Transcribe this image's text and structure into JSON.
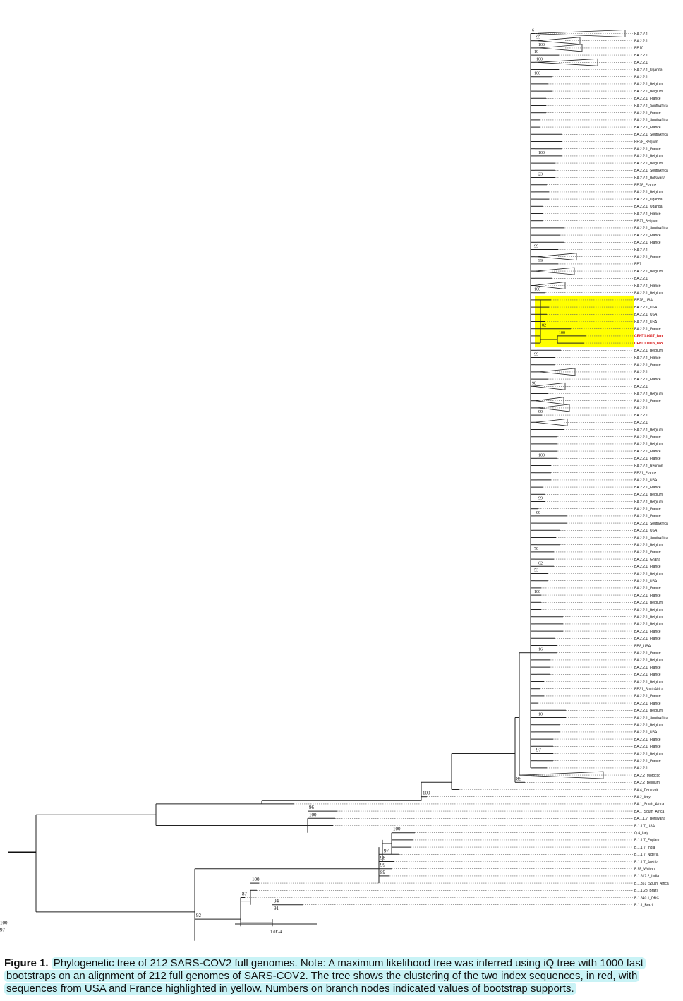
{
  "figure": {
    "caption_lead": "Figure 1.",
    "caption_text": "Phylogenetic tree of 212 SARS-COV2 full genomes. Note: A maximum likelihood tree was inferred using iQ tree with 1000 fast bootstraps on an alignment of 212 full genomes of SARS-COV2. The tree shows the clustering of the two index sequences, in red, with sequences from USA and France highlighted in yellow. Numbers on branch nodes indicated values of bootstrap supports."
  },
  "tree": {
    "scale_label": "1.0E-4",
    "highlight_color": "#ffff00",
    "index_color": "#d40000",
    "tips": [
      "BA.2.2.1",
      "BA.2.2.1",
      "BF.10",
      "BA.2.2.1",
      "BA.2.2.1",
      "BA.2.2.1_Uganda",
      "BA.2.2.1",
      "BA.2.2.1_Belgium",
      "BA.2.2.1_Belgium",
      "BA.2.2.1_France",
      "BA.2.2.1_SouthAfrica",
      "BA.2.2.1_France",
      "BA.2.2.1_SouthAfrica",
      "BA.2.2.1_France",
      "BA.2.2.1_SouthAfrica",
      "BF.28_Belgium",
      "BA.2.2.1_France",
      "BA.2.2.1_Belgium",
      "BA.2.2.1_Belgium",
      "BA.2.2.1_SouthAfrica",
      "BA.2.2.1_Botswana",
      "BF.28_France",
      "BA.2.2.1_Belgium",
      "BA.2.2.1_Uganda",
      "BA.2.2.1_Uganda",
      "BA.2.2.1_France",
      "BF.27_Belgium",
      "BA.2.2.1_SouthAfrica",
      "BA.2.2.1_France",
      "BA.2.2.1_France",
      "BA.2.2.1",
      "BA.2.2.1_France",
      "BF.7",
      "BA.2.2.1_Belgium",
      "BA.2.2.1",
      "BA.2.2.1_France",
      "BA.2.2.1_Belgium",
      "BF.28_USA",
      "BA.2.2.1_USA",
      "BA.2.2.1_USA",
      "BA.2.2.1_USA",
      "BA.2.2.1_France",
      "CENT1.0017_Iwo",
      "CENT1.0013_Iwo",
      "BA.2.2.1_Belgium",
      "BA.2.2.1_France",
      "BA.2.2.1_France",
      "BA.2.2.1",
      "BA.2.2.1_France",
      "BA.2.2.1",
      "BA.2.2.1_Belgium",
      "BA.2.2.1_France",
      "BA.2.2.1",
      "BA.2.2.1",
      "BA.2.2.1",
      "BA.2.2.1_Belgium",
      "BA.2.2.1_France",
      "BA.2.2.1_Belgium",
      "BA.2.2.1_France",
      "BA.2.2.1_France",
      "BA.2.2.1_Reunion",
      "BF.31_France",
      "BA.2.2.1_USA",
      "BA.2.2.1_France",
      "BA.2.2.1_Belgium",
      "BA.2.2.1_Belgium",
      "BA.2.2.1_France",
      "BA.2.2.1_France",
      "BA.2.2.1_SouthAfrica",
      "BA.2.2.1_USA",
      "BA.2.2.1_SouthAfrica",
      "BA.2.2.1_Belgium",
      "BA.2.2.1_France",
      "BA.2.2.1_Ghana",
      "BA.2.2.1_France",
      "BA.2.2.1_Belgium",
      "BA.2.2.1_USA",
      "BA.2.2.1_France",
      "BA.2.2.1_France",
      "BA.2.2.1_Belgium",
      "BA.2.2.1_Belgium",
      "BA.2.2.1_Belgium",
      "BA.2.2.1_Belgium",
      "BA.2.2.1_France",
      "BA.2.2.1_France",
      "BF.8_USA",
      "BA.2.2.1_France",
      "BA.2.2.1_Belgium",
      "BA.2.2.1_France",
      "BA.2.2.1_France",
      "BA.2.2.1_Belgium",
      "BF.31_SouthAfrica",
      "BA.2.2.1_France",
      "BA.2.2.1_France",
      "BA.2.2.1_Belgium",
      "BA.2.2.1_SouthAfrica",
      "BA.2.2.1_Belgium",
      "BA.2.2.1_USA",
      "BA.2.2.1_France",
      "BA.2.2.1_France",
      "BA.2.2.1_Belgium",
      "BA.2.2.1_France",
      "BA.2.2.1",
      "BA.2.2_Morocco",
      "BA.2.2_Belgium",
      "BA.4_Denmark",
      "BA.2_Italy",
      "BA.1_South_Africa",
      "BA.1_South_Africa",
      "BA.1.1.7_Botswana",
      "B.1.1.7_USA",
      "Q.4_Italy",
      "B.1.1.7_England",
      "B.1.1.7_India",
      "B.1.1.7_Nigeria",
      "B.1.1.7_Austria",
      "B.55_Wuhan",
      "B.1.617.2_India",
      "B.1.351_South_Africa",
      "B.1.1.28_Brazil",
      "B.1.640.1_DRC",
      "B.1.1_Brazil"
    ],
    "index_tips": [
      42,
      43
    ],
    "highlight_range": [
      37,
      43
    ],
    "tip_triangles": [
      {
        "tip": 0,
        "depth": 130
      },
      {
        "tip": 1,
        "depth": 60
      },
      {
        "tip": 2,
        "depth": 60
      },
      {
        "tip": 4,
        "depth": 85
      },
      {
        "tip": 31,
        "depth": 55
      },
      {
        "tip": 33,
        "depth": 55
      },
      {
        "tip": 35,
        "depth": 45
      },
      {
        "tip": 47,
        "depth": 50
      },
      {
        "tip": 49,
        "depth": 45
      },
      {
        "tip": 51,
        "depth": 40
      },
      {
        "tip": 52,
        "depth": 45
      },
      {
        "tip": 54,
        "depth": 45
      },
      {
        "tip": 103,
        "depth": 115
      }
    ],
    "bootstrap_labels": [
      {
        "label": "6",
        "tip": 0
      },
      {
        "label": "95",
        "tip": 1
      },
      {
        "label": "100",
        "tip": 2
      },
      {
        "label": "19",
        "tip": 3
      },
      {
        "label": "100",
        "tip": 4
      },
      {
        "label": "100",
        "tip": 6
      },
      {
        "label": "100",
        "tip": 17
      },
      {
        "label": "23",
        "tip": 20
      },
      {
        "label": "99",
        "tip": 30
      },
      {
        "label": "99",
        "tip": 32
      },
      {
        "label": "100",
        "tip": 36
      },
      {
        "label": "82",
        "tip": 41
      },
      {
        "label": "100",
        "tip": 42
      },
      {
        "label": "99",
        "tip": 45
      },
      {
        "label": "98",
        "tip": 49
      },
      {
        "label": "99",
        "tip": 53
      },
      {
        "label": "100",
        "tip": 59
      },
      {
        "label": "99",
        "tip": 65
      },
      {
        "label": "99",
        "tip": 67
      },
      {
        "label": "70",
        "tip": 72
      },
      {
        "label": "62",
        "tip": 74
      },
      {
        "label": "53",
        "tip": 75
      },
      {
        "label": "100",
        "tip": 78
      },
      {
        "label": "16",
        "tip": 86
      },
      {
        "label": "10",
        "tip": 95
      },
      {
        "label": "97",
        "tip": 100
      },
      {
        "label": "85",
        "tip": 104
      },
      {
        "label": "100",
        "tip": 106
      },
      {
        "label": "96",
        "tip": 108
      },
      {
        "label": "100",
        "tip": 109
      },
      {
        "label": "100",
        "tip": 111
      },
      {
        "label": "97",
        "tip": 114
      },
      {
        "label": "98",
        "tip": 115
      },
      {
        "label": "99",
        "tip": 116
      },
      {
        "label": "89",
        "tip": 117
      },
      {
        "label": "100",
        "tip": 118
      },
      {
        "label": "87",
        "tip": 120
      },
      {
        "label": "94",
        "tip": 121
      },
      {
        "label": "91",
        "tip": 122
      },
      {
        "label": "92",
        "tip": 123
      },
      {
        "label": "100",
        "tip": 124
      },
      {
        "label": "97",
        "tip": 125
      }
    ]
  }
}
